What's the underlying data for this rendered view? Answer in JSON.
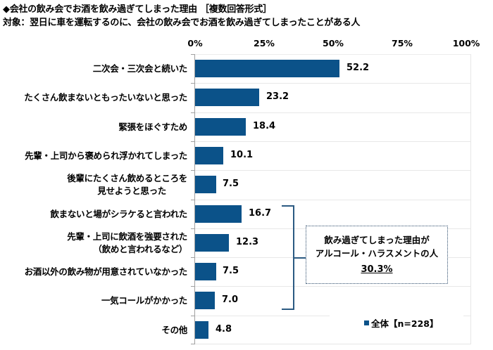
{
  "title": "◆会社の飲み会でお酒を飲み過ぎてしまった理由 ［複数回答形式］",
  "subtitle": "対象：翌日に車を運転するのに、会社の飲み会でお酒を飲み過ぎてしまったことがある人",
  "axis": {
    "ticks": [
      "0%",
      "25%",
      "50%",
      "75%",
      "100%"
    ]
  },
  "categories": [
    {
      "label": "二次会・三次会と続いた",
      "value": "52.2"
    },
    {
      "label": "たくさん飲まないともったいないと思った",
      "value": "23.2"
    },
    {
      "label": "緊張をほぐすため",
      "value": "18.4"
    },
    {
      "label": "先輩・上司から褒められ浮かれてしまった",
      "value": "10.1"
    },
    {
      "label": "後輩にたくさん飲めるところを",
      "label2": "見せようと思った",
      "value": "7.5"
    },
    {
      "label": "飲まないと場がシラケると言われた",
      "value": "16.7"
    },
    {
      "label": "先輩・上司に飲酒を強要された",
      "label2": "（飲めと言われるなど）",
      "value": "12.3"
    },
    {
      "label": "お酒以外の飲み物が用意されていなかった",
      "value": "7.5"
    },
    {
      "label": "一気コールがかかった",
      "value": "7.0"
    },
    {
      "label": "その他",
      "value": "4.8"
    }
  ],
  "annotation": {
    "line1": "飲み過ぎてしまった理由が",
    "line2": "アルコール・ハラスメントの人",
    "value": "30.3%"
  },
  "legend": {
    "label": "全体【n=228】",
    "color": "#0b5289"
  },
  "colors": {
    "bar": "#0b5289",
    "bracket": "#2b5a82"
  },
  "chart_data": {
    "type": "bar",
    "orientation": "horizontal",
    "title": "◆会社の飲み会でお酒を飲み過ぎてしまった理由 ［複数回答形式］",
    "subtitle": "対象：翌日に車を運転するのに、会社の飲み会でお酒を飲み過ぎてしまったことがある人",
    "categories": [
      "二次会・三次会と続いた",
      "たくさん飲まないともったいないと思った",
      "緊張をほぐすため",
      "先輩・上司から褒められ浮かれてしまった",
      "後輩にたくさん飲めるところを見せようと思った",
      "飲まないと場がシラケると言われた",
      "先輩・上司に飲酒を強要された（飲めと言われるなど）",
      "お酒以外の飲み物が用意されていなかった",
      "一気コールがかかった",
      "その他"
    ],
    "series": [
      {
        "name": "全体【n=228】",
        "values": [
          52.2,
          23.2,
          18.4,
          10.1,
          7.5,
          16.7,
          12.3,
          7.5,
          7.0,
          4.8
        ]
      }
    ],
    "xlabel": "",
    "ylabel": "",
    "xlim": [
      0,
      100
    ],
    "xticks": [
      "0%",
      "25%",
      "50%",
      "75%",
      "100%"
    ],
    "grid": true,
    "legend_position": "bottom-right",
    "annotations": [
      {
        "text": "飲み過ぎてしまった理由がアルコール・ハラスメントの人 30.3%",
        "brackets_categories": [
          5,
          6,
          7,
          8
        ]
      }
    ]
  }
}
